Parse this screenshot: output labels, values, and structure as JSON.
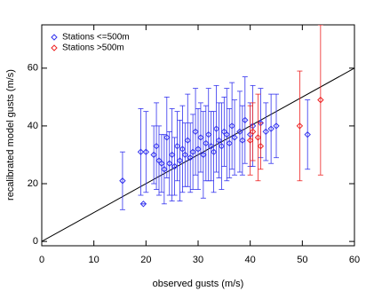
{
  "chart_data": {
    "type": "scatter",
    "xlabel": "observed gusts (m/s)",
    "ylabel": "recalibrated model gusts (m/s)",
    "xlim": [
      0,
      60
    ],
    "ylim": [
      -1.5,
      75
    ],
    "xticks": [
      0,
      10,
      20,
      30,
      40,
      50,
      60
    ],
    "yticks": [
      0,
      20,
      40,
      60
    ],
    "legend": "upper left",
    "reference_line": {
      "x": [
        0,
        60
      ],
      "y": [
        0,
        60
      ],
      "color": "#000000"
    },
    "series": [
      {
        "name": "Stations <=500m",
        "color": "#3333ee",
        "x": [
          15.5,
          19,
          19.5,
          20,
          21.5,
          22,
          22.5,
          23,
          23.5,
          24,
          24.5,
          25,
          25.5,
          26,
          26.5,
          27,
          27.5,
          28,
          28.5,
          29,
          29.5,
          30,
          30.5,
          31,
          31.5,
          32,
          32.5,
          33,
          33.5,
          34,
          34.5,
          35,
          35.5,
          36,
          36.5,
          37,
          38,
          38.5,
          39,
          40,
          40.5,
          42,
          43,
          44,
          45,
          51
        ],
        "values": [
          21,
          31,
          13,
          31,
          30,
          33,
          28,
          27,
          25,
          36,
          27,
          30,
          26,
          33,
          28,
          32,
          30,
          35,
          29,
          31,
          38,
          32,
          36,
          30,
          34,
          37,
          33,
          31,
          39,
          35,
          33,
          38,
          37,
          34,
          40,
          36,
          38,
          35,
          42,
          37,
          40,
          41,
          38,
          39,
          40,
          37
        ],
        "errors": [
          10,
          15,
          0,
          14,
          10,
          15,
          12,
          10,
          12,
          14,
          11,
          16,
          10,
          12,
          14,
          15,
          11,
          16,
          12,
          13,
          15,
          14,
          12,
          15,
          13,
          16,
          12,
          14,
          15,
          13,
          15,
          12,
          16,
          12,
          15,
          13,
          14,
          12,
          15,
          11,
          14,
          12,
          10,
          12,
          11,
          12
        ]
      },
      {
        "name": "Stations >500m",
        "color": "#ee2222",
        "x": [
          40,
          40.5,
          41.5,
          42,
          49.5,
          53.5
        ],
        "values": [
          35,
          38,
          36,
          33,
          40,
          49
        ],
        "errors": [
          12,
          10,
          15,
          8,
          19,
          26
        ]
      }
    ]
  }
}
